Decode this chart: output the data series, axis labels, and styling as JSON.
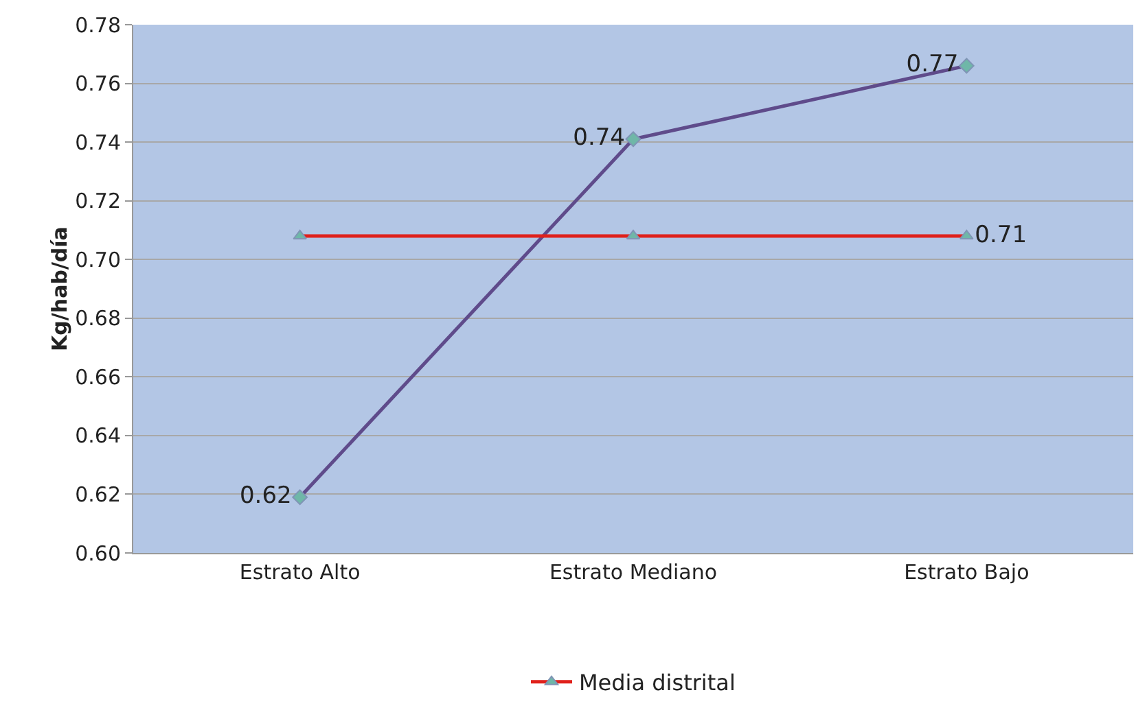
{
  "chart_data": {
    "type": "line",
    "ylabel": "Kg/hab/día",
    "categories": [
      "Estrato Alto",
      "Estrato Mediano",
      "Estrato Bajo"
    ],
    "series": [
      {
        "color": "#5f4b8b",
        "values": [
          0.619,
          0.741,
          0.766
        ],
        "value_labels": [
          "0.62",
          "0.74",
          "0.77"
        ],
        "marker": "diamond"
      },
      {
        "name": "Media distrital",
        "color": "#e0201b",
        "values": [
          0.708,
          0.708,
          0.708
        ],
        "value_labels": [
          null,
          null,
          "0.71"
        ],
        "marker": "triangle"
      }
    ],
    "ylim": [
      0.6,
      0.78
    ],
    "yticks": [
      "0.60",
      "0.62",
      "0.64",
      "0.66",
      "0.68",
      "0.70",
      "0.72",
      "0.74",
      "0.76",
      "0.78"
    ],
    "grid": "y",
    "legend": "bottom",
    "line_style": "solid"
  }
}
